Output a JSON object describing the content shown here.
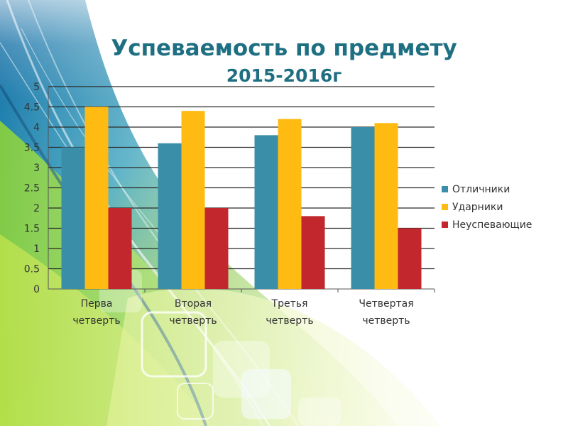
{
  "title": {
    "line1": "Успеваемость по предмету",
    "line2": "2015-2016г"
  },
  "colors": {
    "title": "#1f6f82",
    "series": [
      "#3a8ea8",
      "#ffbb12",
      "#c1272d"
    ]
  },
  "chart_data": {
    "type": "bar",
    "title": "Успеваемость по предмету 2015-2016г",
    "categories": [
      [
        "Перва",
        "четверть"
      ],
      [
        "Вторая",
        "четверть"
      ],
      [
        "Третья",
        "четверть"
      ],
      [
        "Четвертая",
        "четверть"
      ]
    ],
    "series": [
      {
        "name": "Отличники",
        "color": "#3a8ea8",
        "values": [
          3.5,
          3.6,
          3.8,
          4.0
        ]
      },
      {
        "name": "Ударники",
        "color": "#ffbb12",
        "values": [
          4.5,
          4.4,
          4.2,
          4.1
        ]
      },
      {
        "name": "Неуспевающие",
        "color": "#c1272d",
        "values": [
          2.0,
          2.0,
          1.8,
          1.5
        ]
      }
    ],
    "yticks": [
      "0",
      "0.5",
      "1",
      "1.5",
      "2",
      "2.5",
      "3",
      "3.5",
      "4",
      "4.5",
      "5"
    ],
    "ylim": [
      0,
      5
    ],
    "grid": true,
    "legend_position": "right"
  }
}
